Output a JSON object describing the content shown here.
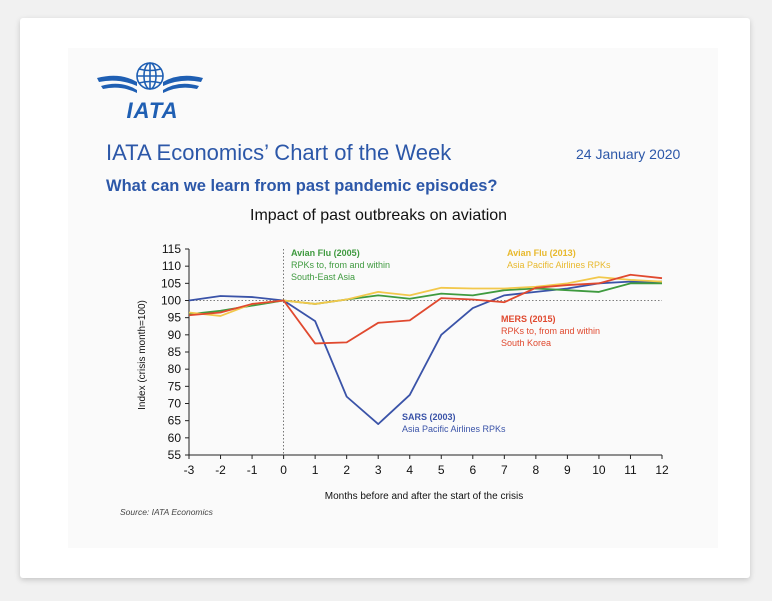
{
  "header": {
    "logo_text": "IATA",
    "title": "IATA Economics’ Chart of the Week",
    "date": "24 January 2020",
    "subtitle": "What can we learn from past pandemic episodes?"
  },
  "source": "Source: IATA Economics",
  "colors": {
    "brand": "#2c57a8",
    "sars": "#3a53a8",
    "avian2005": "#3f9a3f",
    "avian2013": "#f2c84b",
    "mers": "#e0492f"
  },
  "annotations": {
    "avian2005": {
      "title": "Avian Flu (2005)",
      "line1": "RPKs to, from and within",
      "line2": "South-East Asia"
    },
    "avian2013": {
      "title": "Avian Flu (2013)",
      "line1": "Asia Pacific Airlines RPKs"
    },
    "mers": {
      "title": "MERS (2015)",
      "line1": "RPKs to, from and within",
      "line2": "South Korea"
    },
    "sars": {
      "title": "SARS (2003)",
      "line1": "Asia Pacific Airlines RPKs"
    }
  },
  "chart_data": {
    "type": "line",
    "title": "Impact of past outbreaks on aviation",
    "xlabel": "Months before and after the start of the crisis",
    "ylabel": "Index (crisis month=100)",
    "x": [
      -3,
      -2,
      -1,
      0,
      1,
      2,
      3,
      4,
      5,
      6,
      7,
      8,
      9,
      10,
      11,
      12
    ],
    "xlim": [
      -3,
      12
    ],
    "ylim": [
      55,
      115
    ],
    "yticks": [
      55,
      60,
      65,
      70,
      75,
      80,
      85,
      90,
      95,
      100,
      105,
      110,
      115
    ],
    "reference_line": 100,
    "series": [
      {
        "key": "sars",
        "values": [
          100,
          101.3,
          101,
          100,
          94,
          72,
          64,
          72.5,
          90,
          97.8,
          101.5,
          102.5,
          103.5,
          105,
          105.5,
          105.5
        ]
      },
      {
        "key": "avian2005",
        "values": [
          96,
          97,
          98.5,
          100,
          99,
          100.3,
          101.5,
          100.5,
          102,
          101.5,
          103,
          103.5,
          103,
          102.5,
          105,
          105
        ]
      },
      {
        "key": "avian2013",
        "values": [
          96.5,
          95.5,
          99,
          100,
          99,
          100.3,
          102.5,
          101.5,
          103.7,
          103.5,
          103.5,
          104,
          105,
          106.8,
          106,
          105.5
        ]
      },
      {
        "key": "mers",
        "values": [
          95.7,
          96.5,
          99,
          100,
          87.5,
          87.8,
          93.5,
          94.2,
          100.7,
          100.3,
          99.5,
          103.7,
          104.5,
          105,
          107.5,
          106.5
        ]
      }
    ]
  }
}
